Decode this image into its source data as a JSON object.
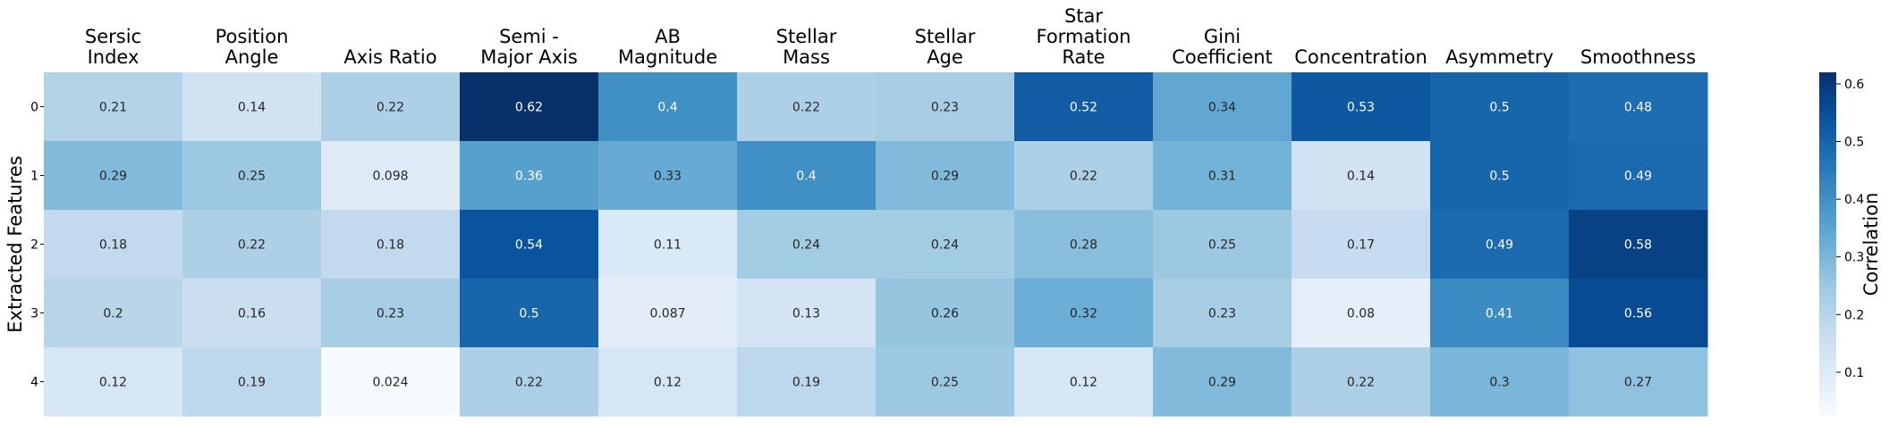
{
  "chart_data": {
    "type": "heatmap",
    "columns": [
      [
        "Sersic",
        "Index"
      ],
      [
        "Position",
        "Angle"
      ],
      [
        "Axis Ratio"
      ],
      [
        "Semi -",
        "Major Axis"
      ],
      [
        "AB",
        "Magnitude"
      ],
      [
        "Stellar",
        "Mass"
      ],
      [
        "Stellar",
        "Age"
      ],
      [
        "Star",
        "Formation",
        "Rate"
      ],
      [
        "Gini",
        "Coefficient"
      ],
      [
        "Concentration"
      ],
      [
        "Asymmetry"
      ],
      [
        "Smoothness"
      ]
    ],
    "rows": [
      "0",
      "1",
      "2",
      "3",
      "4"
    ],
    "values": [
      [
        0.21,
        0.14,
        0.22,
        0.62,
        0.4,
        0.22,
        0.23,
        0.52,
        0.34,
        0.53,
        0.5,
        0.48
      ],
      [
        0.29,
        0.25,
        0.098,
        0.36,
        0.33,
        0.4,
        0.29,
        0.22,
        0.31,
        0.14,
        0.5,
        0.49
      ],
      [
        0.18,
        0.22,
        0.18,
        0.54,
        0.11,
        0.24,
        0.24,
        0.28,
        0.25,
        0.17,
        0.49,
        0.58
      ],
      [
        0.2,
        0.16,
        0.23,
        0.5,
        0.087,
        0.13,
        0.26,
        0.32,
        0.23,
        0.08,
        0.41,
        0.56
      ],
      [
        0.12,
        0.19,
        0.024,
        0.22,
        0.12,
        0.19,
        0.25,
        0.12,
        0.29,
        0.22,
        0.3,
        0.27
      ]
    ],
    "ylabel": "Extracted Features",
    "colorbar": {
      "label": "Correlation",
      "range": [
        0.024,
        0.62
      ],
      "ticks": [
        0.1,
        0.2,
        0.3,
        0.4,
        0.5,
        0.6
      ],
      "colormap": "Blues"
    },
    "colors": {
      "low": "#f7fbff",
      "high": "#08306b"
    }
  }
}
